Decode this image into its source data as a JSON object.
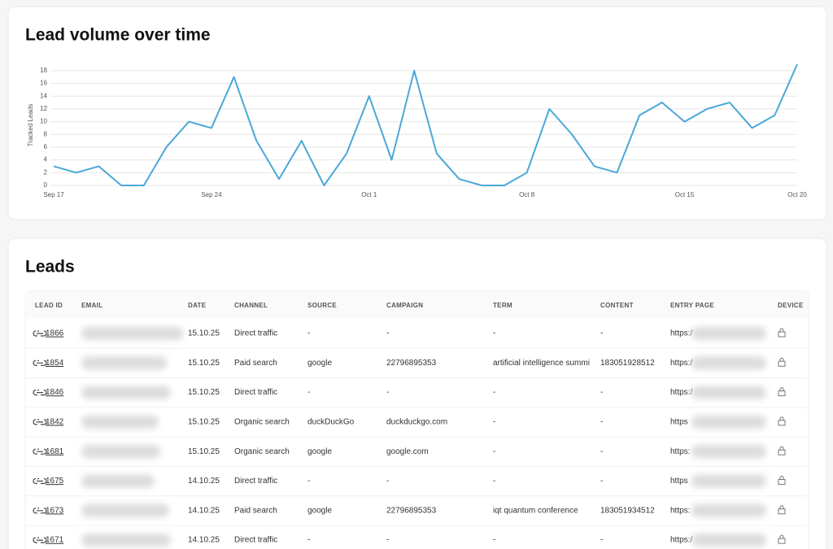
{
  "chart_data": {
    "type": "line",
    "title": "Lead volume over time",
    "y_label": "Tracked Leads",
    "categories": [
      "Sep 17",
      null,
      null,
      null,
      null,
      null,
      null,
      "Sep 24",
      null,
      null,
      null,
      null,
      null,
      null,
      "Oct 1",
      null,
      null,
      null,
      null,
      null,
      null,
      "Oct 8",
      null,
      null,
      null,
      null,
      null,
      null,
      "Oct 15",
      null,
      null,
      null,
      null,
      "Oct 20"
    ],
    "values": [
      3,
      2,
      3,
      0,
      0,
      6,
      10,
      9,
      17,
      7,
      1,
      7,
      0,
      5,
      14,
      4,
      18,
      5,
      1,
      0,
      0,
      2,
      12,
      8,
      3,
      2,
      11,
      13,
      10,
      12,
      13,
      9,
      11,
      19
    ],
    "color": "#4aa8d8",
    "ylim": [
      0,
      19
    ],
    "yticks": [
      0,
      2,
      4,
      6,
      8,
      10,
      12,
      14,
      16,
      18
    ],
    "grid": true
  },
  "table": {
    "title": "Leads",
    "columns": [
      "LEAD ID",
      "EMAIL",
      "DATE",
      "CHANNEL",
      "SOURCE",
      "CAMPAIGN",
      "TERM",
      "CONTENT",
      "ENTRY PAGE",
      "DEVICE"
    ],
    "rows": [
      [
        "1866",
        "15.10.25",
        "Direct traffic",
        "-",
        "-",
        "-",
        "-",
        "https:/"
      ],
      [
        "1854",
        "15.10.25",
        "Paid search",
        "google",
        "22796895353",
        "artificial intelligence summi",
        "183051928512",
        "https:/"
      ],
      [
        "1846",
        "15.10.25",
        "Direct traffic",
        "-",
        "-",
        "-",
        "-",
        "https:/"
      ],
      [
        "1842",
        "15.10.25",
        "Organic search",
        "duckDuckGo",
        "duckduckgo.com",
        "-",
        "-",
        "https"
      ],
      [
        "1681",
        "15.10.25",
        "Organic search",
        "google",
        "google.com",
        "-",
        "-",
        "https:"
      ],
      [
        "1675",
        "14.10.25",
        "Direct traffic",
        "-",
        "-",
        "-",
        "-",
        "https"
      ],
      [
        "1673",
        "14.10.25",
        "Paid search",
        "google",
        "22796895353",
        "iqt quantum conference",
        "183051934512",
        "https:"
      ],
      [
        "1671",
        "14.10.25",
        "Direct traffic",
        "-",
        "-",
        "-",
        "-",
        "https:/"
      ]
    ]
  }
}
